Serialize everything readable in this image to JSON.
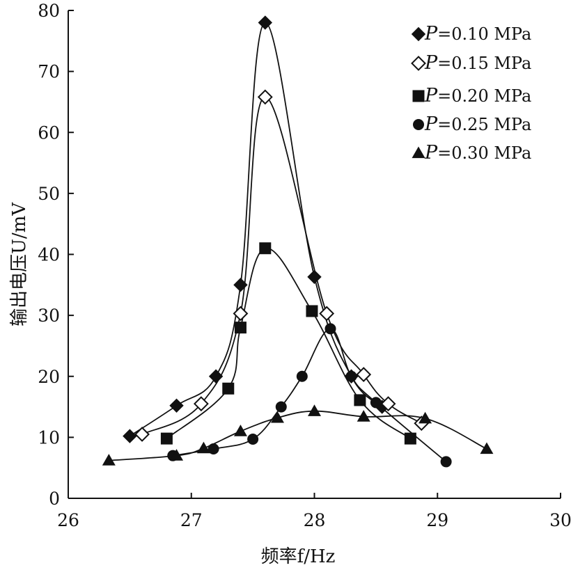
{
  "chart_data": {
    "type": "line",
    "xlabel": "频率f/Hz",
    "ylabel": "输出电压U/mV",
    "xlim": [
      26,
      30
    ],
    "ylim": [
      0,
      80
    ],
    "xticks": [
      "26",
      "27",
      "28",
      "29",
      "30"
    ],
    "yticks": [
      "0",
      "10",
      "20",
      "30",
      "40",
      "50",
      "60",
      "70",
      "80"
    ],
    "legend_position": "top-right",
    "series": [
      {
        "name": "P=0.10 MPa",
        "label_var": "P",
        "label_rest": "=0.10 MPa",
        "marker": "diamond-filled",
        "x": [
          26.5,
          26.88,
          27.2,
          27.4,
          27.6,
          28.0,
          28.3,
          28.55
        ],
        "y": [
          10.2,
          15.2,
          20.0,
          35.0,
          78.0,
          36.3,
          20.0,
          15.0
        ]
      },
      {
        "name": "P=0.15 MPa",
        "label_var": "P",
        "label_rest": "=0.15 MPa",
        "marker": "diamond-open",
        "x": [
          26.6,
          27.08,
          27.4,
          27.6,
          28.1,
          28.4,
          28.6,
          28.87
        ],
        "y": [
          10.5,
          15.5,
          30.3,
          65.8,
          30.3,
          20.3,
          15.5,
          12.3
        ]
      },
      {
        "name": "P=0.20 MPa",
        "label_var": "P",
        "label_rest": "=0.20 MPa",
        "marker": "square",
        "x": [
          26.8,
          27.3,
          27.4,
          27.6,
          27.98,
          28.37,
          28.78
        ],
        "y": [
          9.8,
          18.0,
          28.0,
          41.0,
          30.7,
          16.1,
          9.8
        ]
      },
      {
        "name": "P=0.25 MPa",
        "label_var": "P",
        "label_rest": "=0.25 MPa",
        "marker": "circle",
        "x": [
          26.85,
          27.18,
          27.5,
          27.73,
          27.9,
          28.13,
          28.3,
          28.5,
          29.07
        ],
        "y": [
          7.0,
          8.1,
          9.7,
          15.0,
          20.0,
          27.8,
          20.0,
          15.7,
          6.0
        ]
      },
      {
        "name": "P=0.30 MPa",
        "label_var": "P",
        "label_rest": "=0.30 MPa",
        "marker": "triangle",
        "x": [
          26.33,
          26.88,
          27.1,
          27.4,
          27.7,
          28.0,
          28.4,
          28.9,
          29.4
        ],
        "y": [
          6.2,
          7.0,
          8.2,
          11.0,
          13.2,
          14.3,
          13.4,
          13.1,
          8.1
        ]
      }
    ]
  }
}
